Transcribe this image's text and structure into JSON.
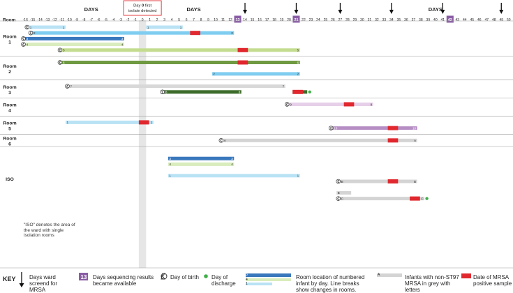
{
  "header": {
    "days_label": "DAYS",
    "room_label": "Room",
    "day0_note": {
      "prefix": "Day ",
      "bold": "0",
      "suffix": " first isolate detected"
    }
  },
  "day_range": [
    -16,
    50
  ],
  "ward_screen_days": [
    14,
    21,
    27,
    34,
    41,
    49
  ],
  "sequencing_days": [
    13,
    21,
    42
  ],
  "rooms": [
    {
      "label": "Room 1",
      "rows": 5
    },
    {
      "label": "Room 2",
      "rows": 3
    },
    {
      "label": "Room 3",
      "rows": 2
    },
    {
      "label": "Room 4",
      "rows": 2
    },
    {
      "label": "Room 5",
      "rows": 2
    },
    {
      "label": "Room 6",
      "rows": 1
    },
    {
      "label": "ISO",
      "rows": 10
    }
  ],
  "iso_note": "\"ISO\" denotes the area of the ward with single isolation rooms",
  "colors": {
    "c1": "#b9e3f5",
    "c2": "#7fcdf0",
    "c3": "#3a78bd",
    "c4": "#d9ecbd",
    "c5": "#c3dc8f",
    "c6": "#6f9a41",
    "c7": "#d8d8d8",
    "c8": "#3d6b2a",
    "c9": "#e6cfe8",
    "c10": "#b68ec4",
    "grey": "#d4d4d4",
    "red": "#e0282e",
    "purple": "#8a5da5",
    "dot": "#3fae49"
  },
  "bars": [
    {
      "row": 0,
      "id": "1",
      "color": "c1",
      "start": -15.5,
      "end": -11,
      "birth": true,
      "ls": "1",
      "rs": "1"
    },
    {
      "row": 0,
      "id": "1",
      "color": "c1",
      "start": 1,
      "end": 5,
      "ls": "1",
      "rs": "1"
    },
    {
      "row": 1,
      "id": "2",
      "color": "c2",
      "start": -15,
      "end": 12,
      "birth": true,
      "ls": "2",
      "rs": "2",
      "pos": [
        7
      ]
    },
    {
      "row": 2,
      "id": "3",
      "color": "c3",
      "start": -16,
      "end": -3,
      "birth": true,
      "ls": "3",
      "rs": "3"
    },
    {
      "row": 3,
      "id": "4",
      "color": "c4",
      "start": -16,
      "end": -3,
      "birth": true,
      "ls": "4",
      "rs": "4"
    },
    {
      "row": 4,
      "id": "5",
      "color": "c5",
      "start": -11,
      "end": 21,
      "birth": true,
      "ls": "5",
      "rs": "5",
      "pos": [
        13.5
      ]
    },
    {
      "row": 5,
      "id": "6",
      "color": "c6",
      "start": -11,
      "end": 21,
      "birth": true,
      "ls": "6",
      "rs": "6",
      "pos": [
        13.5
      ]
    },
    {
      "row": 7,
      "id": "2",
      "color": "c2",
      "start": 10,
      "end": 21,
      "ls": "2",
      "rs": "2"
    },
    {
      "row": 8,
      "id": "7",
      "color": "c7",
      "start": -10,
      "end": 19,
      "birth": true,
      "ls": "7",
      "rs": "7"
    },
    {
      "row": 9,
      "id": "8",
      "color": "c8",
      "start": 3,
      "end": 13,
      "birth": true,
      "ls": "8",
      "rs": "8"
    },
    {
      "row": 9,
      "id": "8",
      "color": "c8",
      "start": 21,
      "end": 22,
      "pos": [
        21
      ],
      "dot": true
    },
    {
      "row": 10,
      "id": "9",
      "color": "c9",
      "start": 20,
      "end": 31,
      "birth": true,
      "ls": "9",
      "rs": "9",
      "pos": [
        28
      ]
    },
    {
      "row": 12,
      "id": "1",
      "color": "c1",
      "start": -10,
      "end": 1,
      "ls": "1",
      "rs": "1",
      "pos": [
        0
      ]
    },
    {
      "row": 13,
      "id": "10",
      "color": "c10",
      "start": 26,
      "end": 37,
      "birth": true,
      "ls": "10",
      "rs": "10",
      "pos": [
        34
      ]
    },
    {
      "row": 14,
      "id": "A",
      "color": "grey",
      "start": 11,
      "end": 37,
      "birth": true,
      "ls": "A",
      "rs": "A",
      "pos": [
        34
      ]
    },
    {
      "row": 16,
      "id": "3",
      "color": "c3",
      "start": 4,
      "end": 12,
      "ls": "3",
      "rs": "3"
    },
    {
      "row": 17,
      "id": "4",
      "color": "c4",
      "start": 4,
      "end": 12,
      "ls": "4",
      "rs": "4"
    },
    {
      "row": 19,
      "id": "1",
      "color": "c1",
      "start": 4,
      "end": 21,
      "ls": "1",
      "rs": "1"
    },
    {
      "row": 20,
      "id": "B",
      "color": "grey",
      "start": 27,
      "end": 37,
      "birth": true,
      "ls": "B",
      "rs": "B",
      "pos": [
        34
      ]
    },
    {
      "row": 22,
      "id": "B",
      "color": "grey",
      "start": 27,
      "end": 28,
      "ls": "B"
    },
    {
      "row": 23,
      "id": "C",
      "color": "grey",
      "start": 27,
      "end": 38,
      "birth": true,
      "ls": "C",
      "rs": "C",
      "pos": [
        37
      ],
      "dot": true
    },
    {
      "row": 25,
      "id": "7",
      "color": "c7",
      "start": 20,
      "end": 22,
      "rs": "7",
      "pos": [
        20
      ]
    },
    {
      "row": 27,
      "id": "1",
      "color": "c1",
      "start": 20,
      "end": 25,
      "ls": "1",
      "rs": "1",
      "dot": true
    },
    {
      "row": 28,
      "id": "2",
      "color": "c2",
      "start": 21,
      "end": 41,
      "ls": "2",
      "rs": "2",
      "dot": true
    },
    {
      "row": 30,
      "id": "3",
      "color": "c3",
      "start": -3,
      "end": 5,
      "ls": "3",
      "rs": "3"
    },
    {
      "row": 30,
      "id": "3",
      "color": "c3",
      "start": 11,
      "end": 20,
      "ls": "3",
      "rs": "3",
      "pos": [
        13.5
      ]
    },
    {
      "row": 31,
      "id": "4",
      "color": "c4",
      "start": -3,
      "end": 5,
      "ls": "4",
      "rs": "4"
    },
    {
      "row": 31,
      "id": "4",
      "color": "c4",
      "start": 12,
      "end": 20,
      "ls": "4",
      "rs": "4",
      "pos": [
        13.5
      ]
    },
    {
      "row": 32,
      "id": "5",
      "color": "c5",
      "start": 21,
      "end": 34,
      "ls": "5",
      "rs": "5",
      "dot": true
    },
    {
      "row": 33,
      "id": "6",
      "color": "c6",
      "start": 21,
      "end": 34,
      "ls": "6",
      "rs": "6",
      "dot": true
    },
    {
      "row": 34,
      "id": "7",
      "color": "c7",
      "start": 17,
      "end": 21,
      "ls": "7",
      "rs": "7",
      "dot": true
    },
    {
      "row": 35,
      "id": "8",
      "color": "c8",
      "start": 13,
      "end": 21,
      "ls": "8",
      "rs": "8"
    },
    {
      "row": 36,
      "id": "9",
      "color": "c9",
      "start": 28,
      "end": 40,
      "ls": "9",
      "rs": "9",
      "dot": true
    },
    {
      "row": 37,
      "id": "10",
      "color": "c10",
      "start": 37,
      "end": 42,
      "ls": "10",
      "rs": "10",
      "dot": true
    },
    {
      "row": 38,
      "id": "A",
      "color": "grey",
      "start": 38,
      "end": 43,
      "ls": "A",
      "rs": "A",
      "dot": true
    },
    {
      "row": 39,
      "id": "B",
      "color": "grey",
      "start": 36,
      "end": 40,
      "ls": "B",
      "rs": "B",
      "dot": true
    }
  ],
  "legend": {
    "key": "KEY",
    "ward_screen": "Days ward screend for MRSA",
    "sequencing_num": "13",
    "sequencing": "Days sequencing results became available",
    "birth": "Day of birth",
    "discharge": "Day of discharge",
    "room_location": "Room location of numbered infant by day. Line breaks show changes in rooms.",
    "sample_ids": [
      "3",
      "4",
      "1",
      "A"
    ],
    "non_st97": "Infants with non-ST97 MRSA in grey with letters",
    "positive": "Date of MRSA positive sample"
  }
}
